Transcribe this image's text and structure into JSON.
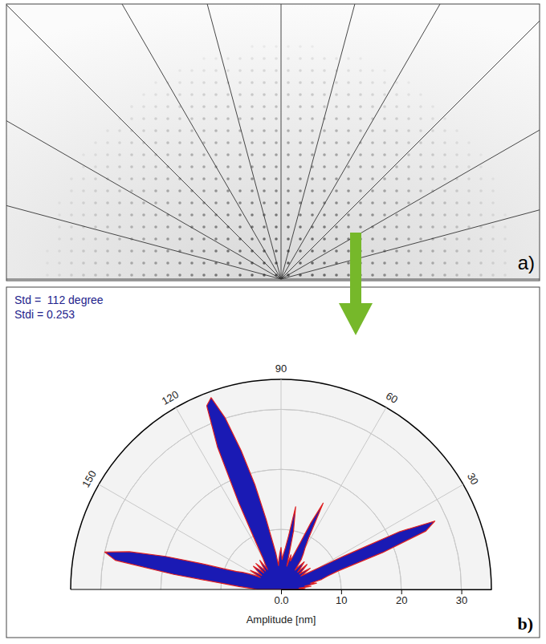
{
  "chart_data": [
    {
      "type": "image",
      "panel_label": "a)"
    },
    {
      "type": "polar",
      "panel_label": "b)",
      "annotations": [
        "Std =  112 degree",
        "Stdi = 0.253"
      ],
      "r_label": "Amplitude [nm]",
      "color": "#1a1ab4",
      "grid": true,
      "rlim": [
        0,
        35
      ],
      "rticks": [
        {
          "value": 0,
          "label": "0.0"
        },
        10,
        20,
        30
      ],
      "thetalim": [
        0,
        180
      ],
      "thetaticks": [
        30,
        60,
        90,
        120,
        150
      ],
      "x": [
        0,
        2,
        4,
        6,
        8,
        10,
        12,
        14,
        16,
        18,
        20,
        22,
        24,
        26,
        28,
        30,
        32,
        34,
        36,
        38,
        40,
        42,
        44,
        46,
        48,
        50,
        52,
        54,
        56,
        58,
        60,
        62,
        64,
        66,
        68,
        70,
        72,
        74,
        76,
        78,
        80,
        82,
        84,
        86,
        88,
        90,
        92,
        94,
        96,
        98,
        100,
        102,
        104,
        106,
        108,
        110,
        112,
        114,
        116,
        118,
        120,
        122,
        124,
        126,
        128,
        130,
        132,
        134,
        136,
        138,
        140,
        142,
        144,
        146,
        148,
        150,
        152,
        154,
        156,
        158,
        160,
        162,
        164,
        166,
        168,
        170,
        172,
        174,
        176,
        178,
        180
      ],
      "values": [
        3,
        4,
        3,
        5,
        4,
        6,
        5,
        7,
        8,
        10,
        18,
        26,
        28,
        22,
        12,
        7,
        5,
        4,
        6,
        5,
        4,
        5,
        6,
        4,
        5,
        6,
        5,
        4,
        6,
        7,
        8,
        10,
        16,
        12,
        8,
        6,
        5,
        6,
        4,
        10,
        14,
        9,
        7,
        6,
        5,
        7,
        6,
        5,
        4,
        6,
        8,
        12,
        18,
        24,
        30,
        34,
        33,
        26,
        16,
        9,
        6,
        5,
        4,
        6,
        5,
        4,
        5,
        6,
        4,
        5,
        6,
        5,
        4,
        5,
        6,
        4,
        5,
        6,
        7,
        8,
        10,
        14,
        20,
        26,
        30,
        28,
        18,
        10,
        7,
        5,
        4
      ]
    }
  ]
}
